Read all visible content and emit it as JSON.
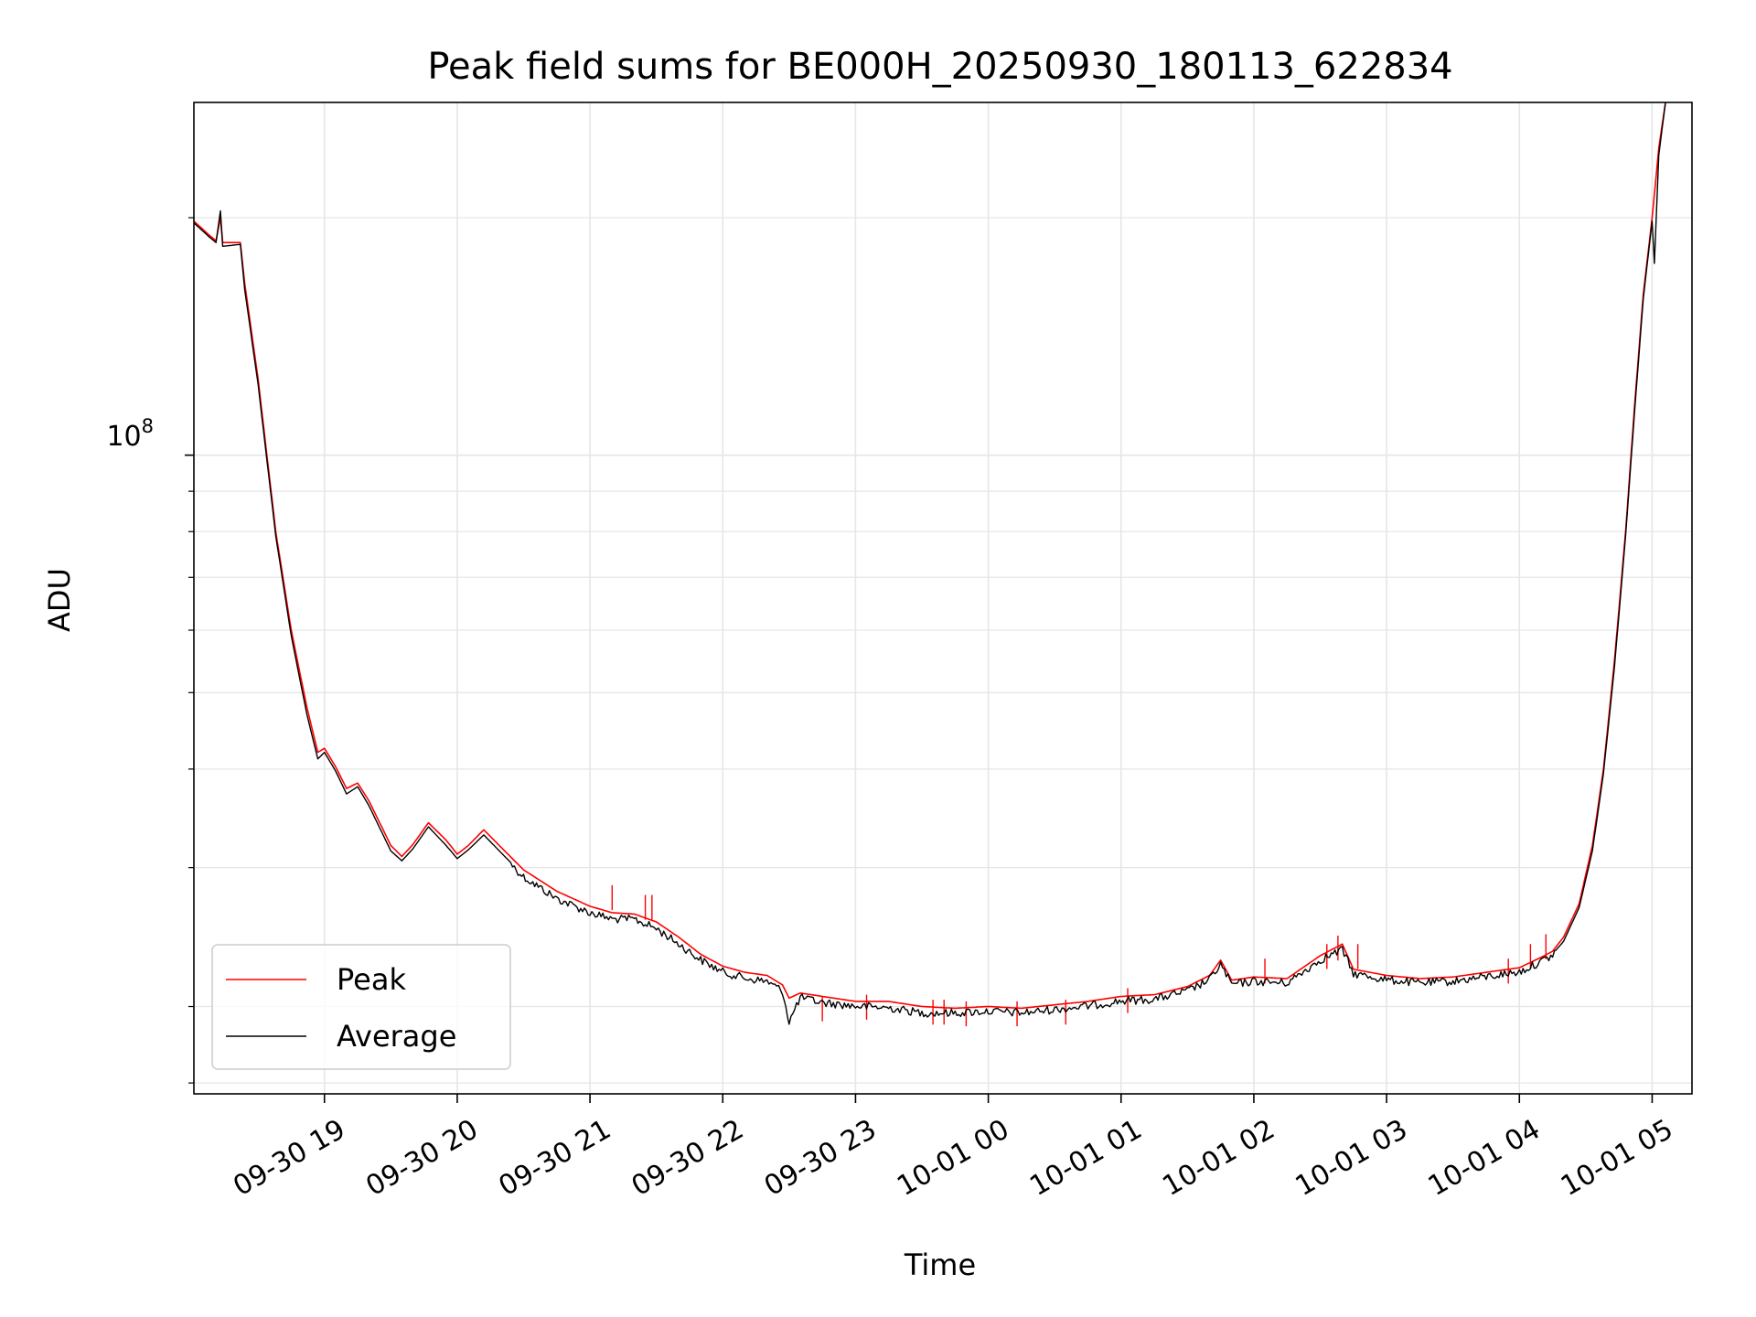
{
  "chart_data": {
    "type": "line",
    "title": "Peak field sums for BE000H_20250930_180113_622834",
    "xlabel": "Time",
    "ylabel": "ADU",
    "y_scale": "log",
    "y_major_label": {
      "base": "10",
      "exponent": "8",
      "value": 100000000
    },
    "ylim": [
      15500000,
      280000000
    ],
    "xlim": [
      "2025-09-30 18:01",
      "2025-10-01 05:18"
    ],
    "grid": true,
    "legend_position": "lower-left",
    "x_ticks": [
      {
        "t": "2025-09-30 19:00",
        "label": "09-30 19"
      },
      {
        "t": "2025-09-30 20:00",
        "label": "09-30 20"
      },
      {
        "t": "2025-09-30 21:00",
        "label": "09-30 21"
      },
      {
        "t": "2025-09-30 22:00",
        "label": "09-30 22"
      },
      {
        "t": "2025-09-30 23:00",
        "label": "09-30 23"
      },
      {
        "t": "2025-10-01 00:00",
        "label": "10-01 00"
      },
      {
        "t": "2025-10-01 01:00",
        "label": "10-01 01"
      },
      {
        "t": "2025-10-01 02:00",
        "label": "10-01 02"
      },
      {
        "t": "2025-10-01 03:00",
        "label": "10-01 03"
      },
      {
        "t": "2025-10-01 04:00",
        "label": "10-01 04"
      },
      {
        "t": "2025-10-01 05:00",
        "label": "10-01 05"
      }
    ],
    "y_minor_ticks": [
      16000000,
      20000000,
      30000000,
      40000000,
      50000000,
      60000000,
      70000000,
      80000000,
      90000000,
      200000000
    ],
    "colors": {
      "peak": "#ff0000",
      "average": "#000000",
      "grid": "#e6e6e6"
    },
    "series": [
      {
        "name": "Peak",
        "color": "#ff0000",
        "points": [
          [
            "2025-09-30 18:01",
            198000000
          ],
          [
            "2025-09-30 18:08",
            190000000
          ],
          [
            "2025-09-30 18:11",
            187000000
          ],
          [
            "2025-09-30 18:13",
            200000000
          ],
          [
            "2025-09-30 18:14",
            186000000
          ],
          [
            "2025-09-30 18:22",
            186000000
          ],
          [
            "2025-09-30 18:24",
            165000000
          ],
          [
            "2025-09-30 18:30",
            125000000
          ],
          [
            "2025-09-30 18:38",
            80000000
          ],
          [
            "2025-09-30 18:45",
            60000000
          ],
          [
            "2025-09-30 18:52",
            48000000
          ],
          [
            "2025-09-30 18:57",
            42000000
          ],
          [
            "2025-09-30 19:00",
            42500000
          ],
          [
            "2025-09-30 19:05",
            40300000
          ],
          [
            "2025-09-30 19:10",
            37800000
          ],
          [
            "2025-09-30 19:15",
            38400000
          ],
          [
            "2025-09-30 19:20",
            36500000
          ],
          [
            "2025-09-30 19:30",
            32000000
          ],
          [
            "2025-09-30 19:35",
            31000000
          ],
          [
            "2025-09-30 19:40",
            32100000
          ],
          [
            "2025-09-30 19:47",
            34200000
          ],
          [
            "2025-09-30 19:55",
            32500000
          ],
          [
            "2025-09-30 20:00",
            31200000
          ],
          [
            "2025-09-30 20:05",
            32000000
          ],
          [
            "2025-09-30 20:12",
            33500000
          ],
          [
            "2025-09-30 20:20",
            31800000
          ],
          [
            "2025-09-30 20:30",
            29800000
          ],
          [
            "2025-09-30 20:45",
            28000000
          ],
          [
            "2025-09-30 21:00",
            26800000
          ],
          [
            "2025-09-30 21:10",
            26300000
          ],
          [
            "2025-09-30 21:20",
            26200000
          ],
          [
            "2025-09-30 21:30",
            25600000
          ],
          [
            "2025-09-30 21:40",
            24500000
          ],
          [
            "2025-09-30 21:50",
            23300000
          ],
          [
            "2025-09-30 22:00",
            22500000
          ],
          [
            "2025-09-30 22:10",
            22100000
          ],
          [
            "2025-09-30 22:20",
            21900000
          ],
          [
            "2025-09-30 22:27",
            21300000
          ],
          [
            "2025-09-30 22:30",
            20500000
          ],
          [
            "2025-09-30 22:35",
            20800000
          ],
          [
            "2025-09-30 22:45",
            20600000
          ],
          [
            "2025-09-30 23:00",
            20300000
          ],
          [
            "2025-09-30 23:15",
            20300000
          ],
          [
            "2025-09-30 23:30",
            20000000
          ],
          [
            "2025-09-30 23:45",
            19900000
          ],
          [
            "2025-10-01 00:00",
            20000000
          ],
          [
            "2025-10-01 00:15",
            19900000
          ],
          [
            "2025-10-01 00:30",
            20100000
          ],
          [
            "2025-10-01 00:45",
            20300000
          ],
          [
            "2025-10-01 01:00",
            20600000
          ],
          [
            "2025-10-01 01:15",
            20700000
          ],
          [
            "2025-10-01 01:30",
            21200000
          ],
          [
            "2025-10-01 01:40",
            21900000
          ],
          [
            "2025-10-01 01:45",
            22900000
          ],
          [
            "2025-10-01 01:50",
            21600000
          ],
          [
            "2025-10-01 02:00",
            21800000
          ],
          [
            "2025-10-01 02:15",
            21700000
          ],
          [
            "2025-10-01 02:30",
            23200000
          ],
          [
            "2025-10-01 02:40",
            24000000
          ],
          [
            "2025-10-01 02:45",
            22300000
          ],
          [
            "2025-10-01 03:00",
            21900000
          ],
          [
            "2025-10-01 03:15",
            21700000
          ],
          [
            "2025-10-01 03:30",
            21800000
          ],
          [
            "2025-10-01 03:45",
            22100000
          ],
          [
            "2025-10-01 04:00",
            22400000
          ],
          [
            "2025-10-01 04:10",
            23100000
          ],
          [
            "2025-10-01 04:15",
            23500000
          ],
          [
            "2025-10-01 04:20",
            24500000
          ],
          [
            "2025-10-01 04:27",
            27000000
          ],
          [
            "2025-10-01 04:33",
            32000000
          ],
          [
            "2025-10-01 04:38",
            40000000
          ],
          [
            "2025-10-01 04:43",
            55000000
          ],
          [
            "2025-10-01 04:48",
            80000000
          ],
          [
            "2025-10-01 04:52",
            115000000
          ],
          [
            "2025-10-01 04:56",
            160000000
          ],
          [
            "2025-10-01 05:00",
            200000000
          ],
          [
            "2025-10-01 05:03",
            245000000
          ],
          [
            "2025-10-01 05:06",
            280000000
          ]
        ],
        "spikes": [
          [
            "2025-09-30 21:10",
            28500000
          ],
          [
            "2025-09-30 21:25",
            27700000
          ],
          [
            "2025-09-30 21:28",
            27700000
          ],
          [
            "2025-09-30 22:45",
            20600000
          ],
          [
            "2025-09-30 23:05",
            20700000
          ],
          [
            "2025-09-30 23:35",
            20400000
          ],
          [
            "2025-09-30 23:40",
            20400000
          ],
          [
            "2025-09-30 23:50",
            20300000
          ],
          [
            "2025-10-01 00:13",
            20300000
          ],
          [
            "2025-10-01 00:35",
            20400000
          ],
          [
            "2025-10-01 01:03",
            21100000
          ],
          [
            "2025-10-01 02:05",
            23000000
          ],
          [
            "2025-10-01 02:33",
            24000000
          ],
          [
            "2025-10-01 02:38",
            24600000
          ],
          [
            "2025-10-01 02:47",
            24000000
          ],
          [
            "2025-10-01 03:55",
            23000000
          ],
          [
            "2025-10-01 04:05",
            24000000
          ],
          [
            "2025-10-01 04:12",
            24700000
          ]
        ]
      },
      {
        "name": "Average",
        "color": "#000000",
        "points": [
          [
            "2025-09-30 18:01",
            197000000
          ],
          [
            "2025-09-30 18:08",
            189000000
          ],
          [
            "2025-09-30 18:11",
            186000000
          ],
          [
            "2025-09-30 18:13",
            204000000
          ],
          [
            "2025-09-30 18:14",
            184000000
          ],
          [
            "2025-09-30 18:22",
            185000000
          ],
          [
            "2025-09-30 18:24",
            162000000
          ],
          [
            "2025-09-30 18:30",
            123000000
          ],
          [
            "2025-09-30 18:38",
            79000000
          ],
          [
            "2025-09-30 18:45",
            59000000
          ],
          [
            "2025-09-30 18:52",
            47000000
          ],
          [
            "2025-09-30 18:57",
            41200000
          ],
          [
            "2025-09-30 19:00",
            42000000
          ],
          [
            "2025-09-30 19:05",
            39800000
          ],
          [
            "2025-09-30 19:10",
            37200000
          ],
          [
            "2025-09-30 19:15",
            38000000
          ],
          [
            "2025-09-30 19:20",
            36000000
          ],
          [
            "2025-09-30 19:30",
            31500000
          ],
          [
            "2025-09-30 19:35",
            30600000
          ],
          [
            "2025-09-30 19:40",
            31700000
          ],
          [
            "2025-09-30 19:47",
            33800000
          ],
          [
            "2025-09-30 19:55",
            32000000
          ],
          [
            "2025-09-30 20:00",
            30800000
          ],
          [
            "2025-09-30 20:05",
            31600000
          ],
          [
            "2025-09-30 20:12",
            33000000
          ],
          [
            "2025-09-30 20:20",
            31300000
          ],
          [
            "2025-09-30 20:30",
            29300000
          ],
          [
            "2025-09-30 20:45",
            27500000
          ],
          [
            "2025-09-30 21:00",
            26400000
          ],
          [
            "2025-09-30 21:10",
            25900000
          ],
          [
            "2025-09-30 21:20",
            25900000
          ],
          [
            "2025-09-30 21:30",
            25200000
          ],
          [
            "2025-09-30 21:40",
            24100000
          ],
          [
            "2025-09-30 21:50",
            23000000
          ],
          [
            "2025-09-30 22:00",
            22200000
          ],
          [
            "2025-09-30 22:10",
            21800000
          ],
          [
            "2025-09-30 22:20",
            21600000
          ],
          [
            "2025-09-30 22:27",
            21000000
          ],
          [
            "2025-09-30 22:30",
            19200000
          ],
          [
            "2025-09-30 22:35",
            20600000
          ],
          [
            "2025-09-30 22:45",
            20300000
          ],
          [
            "2025-09-30 23:00",
            20100000
          ],
          [
            "2025-09-30 23:15",
            20000000
          ],
          [
            "2025-09-30 23:30",
            19700000
          ],
          [
            "2025-09-30 23:45",
            19700000
          ],
          [
            "2025-10-01 00:00",
            19800000
          ],
          [
            "2025-10-01 00:15",
            19700000
          ],
          [
            "2025-10-01 00:30",
            19900000
          ],
          [
            "2025-10-01 00:45",
            20100000
          ],
          [
            "2025-10-01 01:00",
            20400000
          ],
          [
            "2025-10-01 01:15",
            20500000
          ],
          [
            "2025-10-01 01:30",
            21000000
          ],
          [
            "2025-10-01 01:40",
            21700000
          ],
          [
            "2025-10-01 01:45",
            22700000
          ],
          [
            "2025-10-01 01:50",
            21400000
          ],
          [
            "2025-10-01 02:00",
            21600000
          ],
          [
            "2025-10-01 02:15",
            21500000
          ],
          [
            "2025-10-01 02:30",
            23000000
          ],
          [
            "2025-10-01 02:40",
            23700000
          ],
          [
            "2025-10-01 02:45",
            22100000
          ],
          [
            "2025-10-01 03:00",
            21700000
          ],
          [
            "2025-10-01 03:15",
            21500000
          ],
          [
            "2025-10-01 03:30",
            21600000
          ],
          [
            "2025-10-01 03:45",
            21900000
          ],
          [
            "2025-10-01 04:00",
            22200000
          ],
          [
            "2025-10-01 04:10",
            22900000
          ],
          [
            "2025-10-01 04:15",
            23300000
          ],
          [
            "2025-10-01 04:20",
            24200000
          ],
          [
            "2025-10-01 04:27",
            26700000
          ],
          [
            "2025-10-01 04:33",
            31500000
          ],
          [
            "2025-10-01 04:38",
            39500000
          ],
          [
            "2025-10-01 04:43",
            54000000
          ],
          [
            "2025-10-01 04:48",
            79000000
          ],
          [
            "2025-10-01 04:52",
            113000000
          ],
          [
            "2025-10-01 04:56",
            158000000
          ],
          [
            "2025-10-01 05:00",
            198000000
          ],
          [
            "2025-10-01 05:01",
            175000000
          ],
          [
            "2025-10-01 05:03",
            240000000
          ],
          [
            "2025-10-01 05:06",
            280000000
          ]
        ]
      }
    ]
  }
}
